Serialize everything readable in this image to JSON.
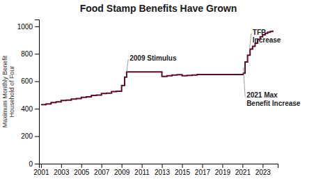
{
  "chart_data": {
    "type": "step",
    "title": "Food Stamp Benefits Have Grown",
    "y_label": [
      "Maximum Monthly Benefit",
      "Household of Four"
    ],
    "color": "#5C0A2E",
    "grid": false,
    "xlim": [
      2000.8,
      2024.5
    ],
    "ylim": [
      0,
      1050
    ],
    "xticks": [
      2001,
      2003,
      2005,
      2007,
      2009,
      2011,
      2013,
      2015,
      2017,
      2019,
      2021,
      2023
    ],
    "yticks": [
      0,
      200,
      400,
      600,
      800,
      1000
    ],
    "x": [
      2001,
      2001.5,
      2002,
      2002.5,
      2003,
      2003.5,
      2004,
      2004.5,
      2005,
      2005.5,
      2006,
      2006.5,
      2007,
      2007.5,
      2008,
      2008.5,
      2009,
      2009.3,
      2009.5,
      2010,
      2010.5,
      2011,
      2011.5,
      2012,
      2012.5,
      2013,
      2013.5,
      2014,
      2014.5,
      2015,
      2015.5,
      2016,
      2016.5,
      2017,
      2017.5,
      2018,
      2018.5,
      2019,
      2019.5,
      2020,
      2020.5,
      2021,
      2021.08,
      2021.25,
      2021.5,
      2021.75,
      2022,
      2022.25,
      2022.5,
      2022.75,
      2023,
      2023.25,
      2023.5,
      2023.75,
      2024
    ],
    "values": [
      430,
      435,
      445,
      450,
      460,
      463,
      471,
      474,
      483,
      487,
      497,
      500,
      511,
      514,
      525,
      528,
      570,
      630,
      668,
      668,
      668,
      668,
      668,
      668,
      668,
      635,
      640,
      645,
      648,
      640,
      643,
      646,
      649,
      649,
      649,
      649,
      649,
      649,
      649,
      649,
      649,
      649,
      660,
      740,
      790,
      835,
      855,
      878,
      905,
      925,
      939,
      950,
      958,
      963,
      970
    ],
    "annotations": [
      {
        "text": [
          "2009 Stimulus"
        ],
        "x": 2009.5,
        "y": 668,
        "text_x": 2009.8,
        "text_y": 790
      },
      {
        "text": [
          "TFP",
          "Increase"
        ],
        "x": 2021.7,
        "y": 835,
        "text_x": 2022.0,
        "text_y": 980
      },
      {
        "text": [
          "2021 Max",
          "Benefit Increase"
        ],
        "x": 2021.08,
        "y": 700,
        "text_x": 2021.4,
        "text_y": 520
      }
    ]
  }
}
